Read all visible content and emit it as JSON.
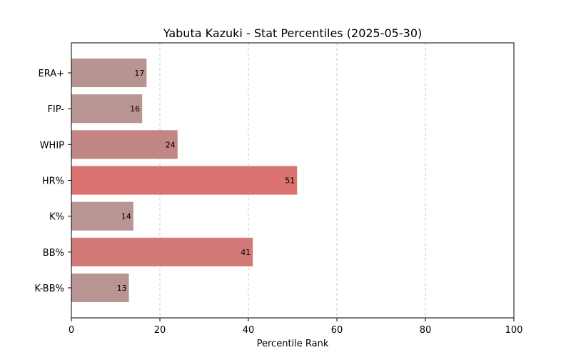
{
  "chart_data": {
    "type": "bar",
    "orientation": "horizontal",
    "title": "Yabuta Kazuki - Stat Percentiles (2025-05-30)",
    "xlabel": "Percentile Rank",
    "ylabel": "",
    "xlim": [
      0,
      100
    ],
    "xticks": [
      0,
      20,
      40,
      60,
      80,
      100
    ],
    "grid": "x-dashed",
    "categories": [
      "ERA+",
      "FIP-",
      "WHIP",
      "HR%",
      "K%",
      "BB%",
      "K-BB%"
    ],
    "values": [
      17,
      16,
      24,
      51,
      14,
      41,
      13
    ],
    "colors": [
      "#b79391",
      "#b89492",
      "#c28684",
      "#da7270",
      "#b89492",
      "#d27a78",
      "#b89492"
    ]
  }
}
